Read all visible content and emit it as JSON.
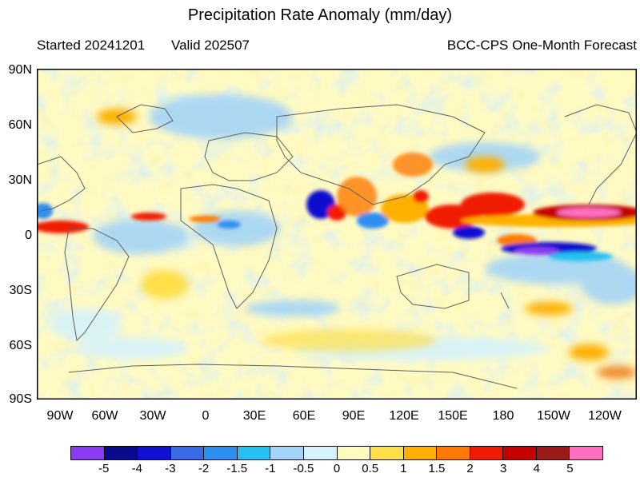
{
  "header": {
    "title": "Precipitation Rate Anomaly (mm/day)",
    "started": "Started 20241201",
    "valid": "Valid 202507",
    "forecast": "BCC-CPS One-Month Forecast"
  },
  "map": {
    "lat_labels": [
      "90N",
      "60N",
      "30N",
      "0",
      "30S",
      "60S",
      "90S"
    ],
    "lon_labels": [
      "90W",
      "60W",
      "30W",
      "0",
      "30E",
      "60E",
      "90E",
      "120E",
      "150E",
      "180",
      "150W",
      "120W"
    ]
  },
  "colorbar": {
    "colors": [
      "#8b3cf0",
      "#0a0a8c",
      "#1010d0",
      "#3a6ae6",
      "#2f8ff0",
      "#27c0f2",
      "#a4d4f7",
      "#d6f2fb",
      "#fffac0",
      "#ffe04a",
      "#ffb000",
      "#ff7a00",
      "#f01a00",
      "#c40000",
      "#9a1a1a",
      "#ff6fbf"
    ],
    "labels": [
      "-5",
      "-4",
      "-3",
      "-2",
      "-1.5",
      "-1",
      "-0.5",
      "0",
      "0.5",
      "1",
      "1.5",
      "2",
      "3",
      "4",
      "5"
    ]
  }
}
